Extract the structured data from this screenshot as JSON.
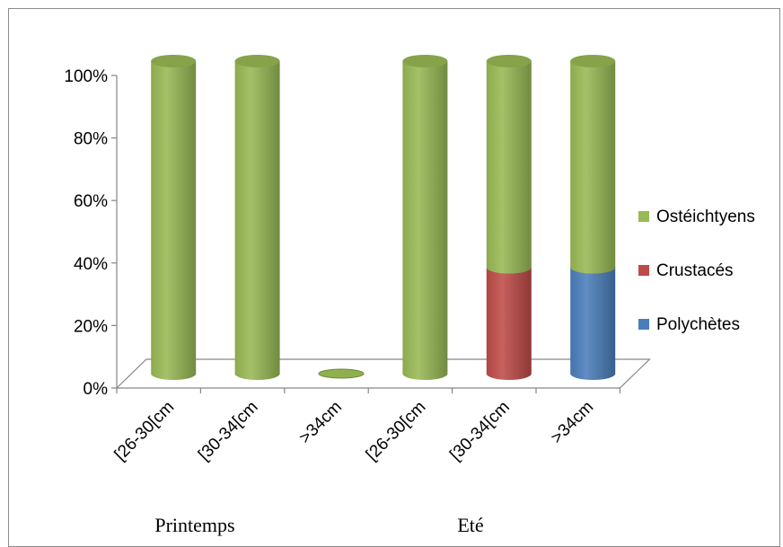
{
  "chart_data": {
    "type": "bar",
    "stacked": true,
    "percent_stacked": true,
    "three_d": true,
    "ylim": [
      0,
      100
    ],
    "y_ticks": [
      "0%",
      "20%",
      "40%",
      "60%",
      "80%",
      "100%"
    ],
    "categories": [
      "[26-30[cm",
      "[30-34[cm",
      ">34cm",
      "[26-30[cm",
      "[30-34[cm",
      ">34cm"
    ],
    "groups": [
      {
        "label": "Printemps",
        "category_indices": [
          0,
          1,
          2
        ]
      },
      {
        "label": "Eté",
        "category_indices": [
          3,
          4,
          5
        ]
      }
    ],
    "series": [
      {
        "name": "Polychètes",
        "color": "#4a7ebb",
        "values": [
          0,
          0,
          0,
          0,
          0,
          34
        ]
      },
      {
        "name": "Crustacés",
        "color": "#be4b48",
        "values": [
          0,
          0,
          0,
          0,
          34,
          0
        ]
      },
      {
        "name": "Ostéichtyens",
        "color": "#98b954",
        "values": [
          100,
          100,
          0,
          100,
          66,
          66
        ]
      }
    ],
    "legend_position": "right",
    "grid": false
  }
}
